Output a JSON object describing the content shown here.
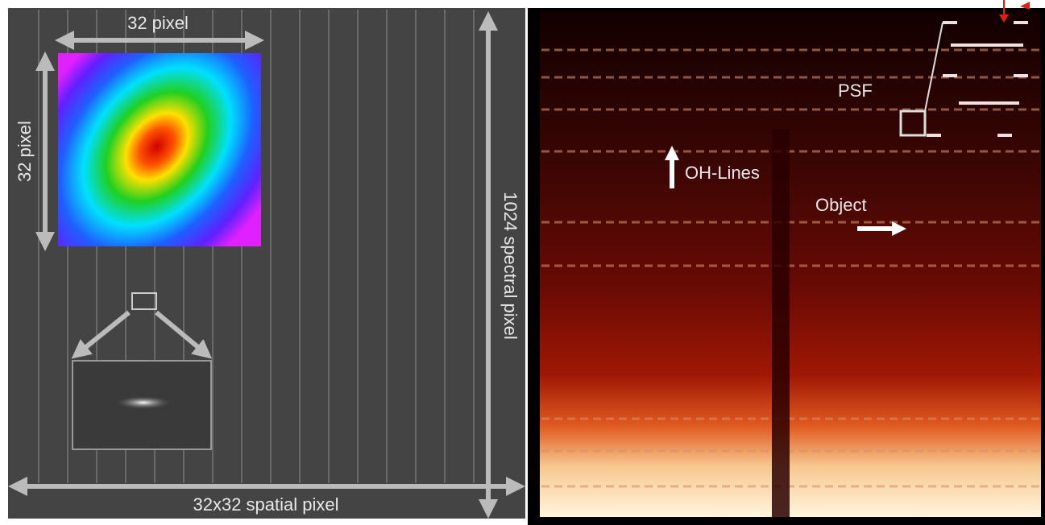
{
  "labels": {
    "top": "32 pixel",
    "left": "32 pixel",
    "right": "1024 spectral pixel",
    "bottom": "32x32 spatial pixel",
    "psf": "PSF",
    "oh_lines": "OH-Lines",
    "object": "Object"
  }
}
